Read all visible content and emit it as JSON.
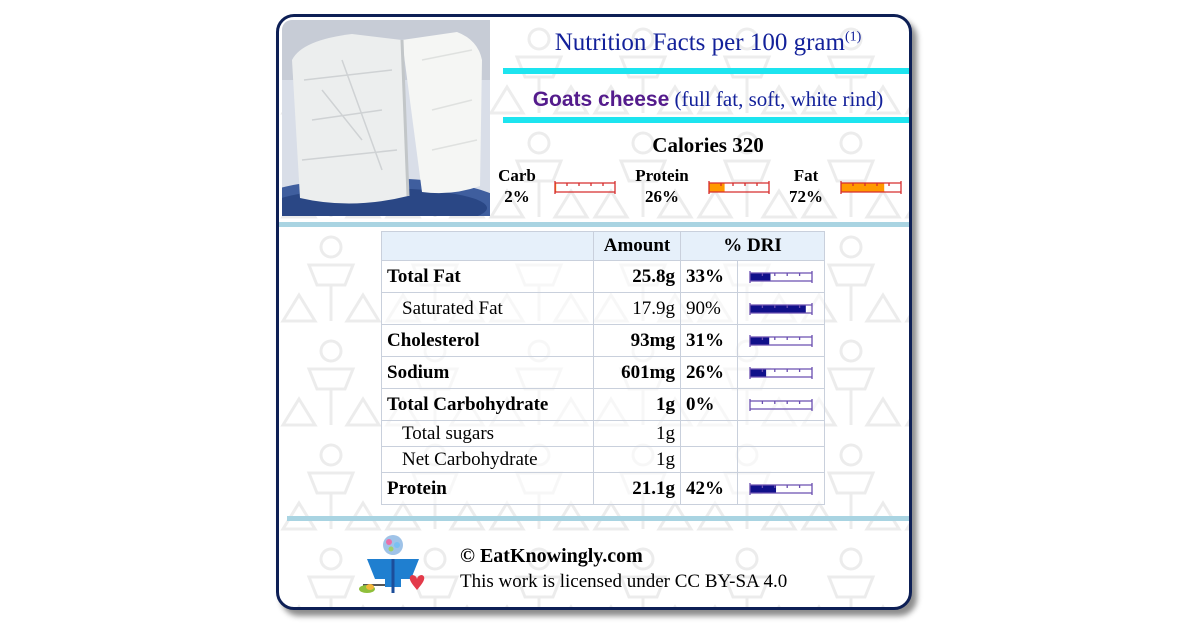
{
  "header": {
    "title": "Nutrition Facts per 100 gram",
    "footnote_mark": "(1)"
  },
  "food": {
    "name": "Goats cheese",
    "descriptor": "(full fat, soft, white rind)"
  },
  "calories": {
    "label": "Calories",
    "value": "320"
  },
  "macros": [
    {
      "name": "Carb",
      "percent": "2%",
      "fraction": 0.02
    },
    {
      "name": "Protein",
      "percent": "26%",
      "fraction": 0.26
    },
    {
      "name": "Fat",
      "percent": "72%",
      "fraction": 0.72
    }
  ],
  "table": {
    "headers": {
      "amount": "Amount",
      "dri": "% DRI"
    },
    "rows": [
      {
        "name": "Total Fat",
        "amount": "25.8g",
        "dri": "33%",
        "fraction": 0.33,
        "bold": true
      },
      {
        "name": "Saturated Fat",
        "amount": "17.9g",
        "dri": "90%",
        "fraction": 0.9,
        "bold": false
      },
      {
        "name": "Cholesterol",
        "amount": "93mg",
        "dri": "31%",
        "fraction": 0.31,
        "bold": true
      },
      {
        "name": "Sodium",
        "amount": "601mg",
        "dri": "26%",
        "fraction": 0.26,
        "bold": true
      },
      {
        "name": "Total Carbohydrate",
        "amount": "1g",
        "dri": "0%",
        "fraction": 0.0,
        "bold": true
      },
      {
        "name": "Total sugars",
        "amount": "1g",
        "dri": "",
        "bold": false
      },
      {
        "name": "Net Carbohydrate",
        "amount": "1g",
        "dri": "",
        "bold": false
      },
      {
        "name": "Protein",
        "amount": "21.1g",
        "dri": "42%",
        "fraction": 0.42,
        "bold": true
      }
    ]
  },
  "footer": {
    "copyright": "© EatKnowingly.com",
    "license": "This work is licensed under CC BY-SA 4.0"
  },
  "colors": {
    "title_blue": "#13219a",
    "food_purple": "#541b8c",
    "cyan_rule": "#1de4ef",
    "macro_fill": "#ff9900",
    "macro_border": "#d62d2d",
    "dri_fill": "#10108a",
    "dri_border": "#6a4fb0",
    "card_border": "#0d1f55"
  }
}
